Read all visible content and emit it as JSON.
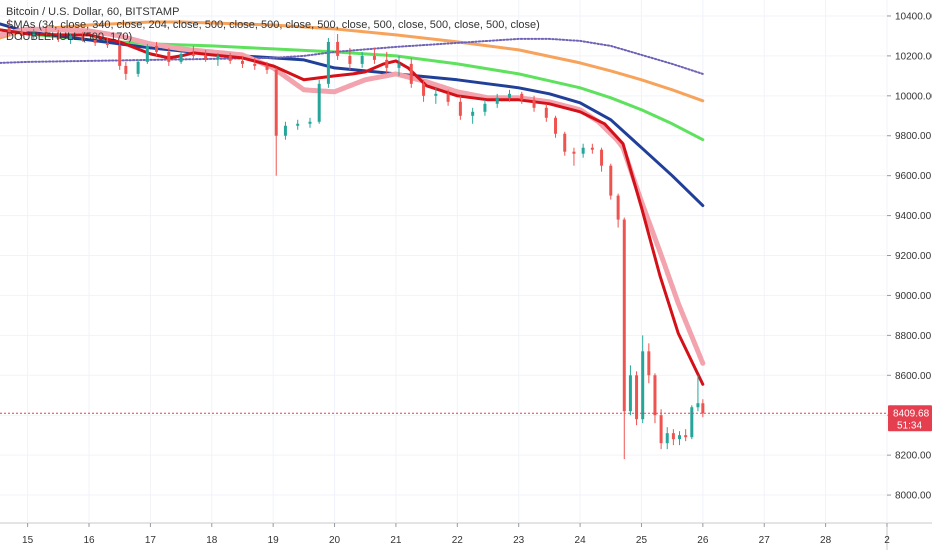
{
  "legend": {
    "symbol": "Bitcoin / U.S. Dollar, 60, BITSTAMP",
    "smas": "SMAs (34, close, 340, close, 204, close, 500, close, 500, close, 500, close, 500, close, 500, close, 500, close)",
    "hull": "DOUBLEHULL (500, 170)"
  },
  "price_label": {
    "value": "8409.68",
    "countdown": "51:34",
    "color": "#e53e4f"
  },
  "chart_data": {
    "type": "line",
    "title": "Bitcoin / U.S. Dollar, 60, BITSTAMP",
    "xlabel": "",
    "ylabel": "",
    "x_ticks": [
      "15",
      "16",
      "17",
      "18",
      "19",
      "20",
      "21",
      "22",
      "23",
      "24",
      "25",
      "26",
      "27",
      "28",
      "2"
    ],
    "x_range": [
      14.55,
      29.0
    ],
    "y_ticks": [
      8000,
      8200,
      8400,
      8600,
      8800,
      9000,
      9200,
      9400,
      9600,
      9800,
      10000,
      10200,
      10400
    ],
    "y_tick_labels": [
      "8000.00",
      "8200.00",
      "8400.00",
      "8600.00",
      "8800.00",
      "9000.00",
      "9200.00",
      "9400.00",
      "9600.00",
      "9800.00",
      "10000.00",
      "10200.00",
      "10400.00"
    ],
    "ylim": [
      7860,
      10480
    ],
    "grid": true,
    "last_price": 8409.68,
    "colors": {
      "candle_up": "#26a69a",
      "candle_down": "#ef5350",
      "sma_orange": "#f7a35c",
      "sma_green": "#5ee25e",
      "sma_blue": "#1f3f99",
      "sma_purple": "#6e63b6",
      "hull_red": "#d41119",
      "hull_pink": "#f2a3ad"
    },
    "series": [
      {
        "color": "#f7a35c",
        "x": [
          14.55,
          15.0,
          16.0,
          17.0,
          17.5,
          18.0,
          19.0,
          20.0,
          21.0,
          22.0,
          23.0,
          24.0,
          24.5,
          25.0,
          25.5,
          26.0
        ],
        "values": [
          10290,
          10330,
          10355,
          10370,
          10370,
          10365,
          10355,
          10335,
          10305,
          10270,
          10230,
          10165,
          10125,
          10080,
          10030,
          9975
        ]
      },
      {
        "color": "#5ee25e",
        "x": [
          14.55,
          15.0,
          16.0,
          17.0,
          18.0,
          19.0,
          20.0,
          21.0,
          22.0,
          23.0,
          23.5,
          24.0,
          24.5,
          25.0,
          25.5,
          26.0
        ],
        "values": [
          10330,
          10310,
          10280,
          10260,
          10250,
          10235,
          10220,
          10200,
          10160,
          10110,
          10075,
          10040,
          9990,
          9930,
          9860,
          9780
        ]
      },
      {
        "color": "#1f3f99",
        "x": [
          14.55,
          15.0,
          16.0,
          17.0,
          18.0,
          19.0,
          19.5,
          20.0,
          21.0,
          22.0,
          22.5,
          23.0,
          23.5,
          24.0,
          24.5,
          25.0,
          25.5,
          26.0
        ],
        "values": [
          10360,
          10320,
          10280,
          10240,
          10210,
          10190,
          10180,
          10140,
          10110,
          10080,
          10060,
          10040,
          10010,
          9965,
          9880,
          9740,
          9600,
          9450
        ]
      },
      {
        "color": "#6e63b6",
        "x": [
          14.55,
          15.0,
          16.0,
          17.0,
          18.0,
          19.0,
          19.5,
          20.0,
          21.0,
          22.0,
          23.0,
          23.5,
          24.0,
          24.5,
          25.0,
          25.5,
          26.0
        ],
        "values": [
          10165,
          10170,
          10175,
          10180,
          10185,
          10190,
          10200,
          10220,
          10245,
          10265,
          10285,
          10285,
          10275,
          10250,
          10205,
          10160,
          10110
        ]
      },
      {
        "color": "#f2a3ad",
        "x": [
          14.55,
          15.0,
          15.5,
          16.0,
          16.5,
          17.0,
          17.5,
          18.0,
          18.5,
          19.0,
          19.5,
          20.0,
          20.5,
          21.0,
          21.5,
          22.0,
          22.5,
          23.0,
          23.5,
          24.0,
          24.3,
          24.6,
          24.7,
          25.0,
          25.3,
          25.6,
          26.0
        ],
        "values": [
          10305,
          10335,
          10330,
          10325,
          10300,
          10260,
          10235,
          10220,
          10205,
          10140,
          10030,
          10020,
          10080,
          10110,
          10070,
          10020,
          9990,
          9990,
          9970,
          9930,
          9870,
          9780,
          9740,
          9470,
          9220,
          8960,
          8660
        ]
      },
      {
        "color": "#d41119",
        "x": [
          14.55,
          15.0,
          15.5,
          16.0,
          16.5,
          17.0,
          17.3,
          17.5,
          17.7,
          18.0,
          18.5,
          19.0,
          19.5,
          20.0,
          20.3,
          20.5,
          20.8,
          21.0,
          21.2,
          21.5,
          22.0,
          22.5,
          23.0,
          23.5,
          24.0,
          24.4,
          24.7,
          25.0,
          25.3,
          25.6,
          26.0
        ],
        "values": [
          10330,
          10310,
          10305,
          10305,
          10270,
          10210,
          10190,
          10200,
          10215,
          10205,
          10190,
          10150,
          10080,
          10100,
          10110,
          10120,
          10160,
          10175,
          10140,
          10050,
          10000,
          9980,
          9980,
          9960,
          9920,
          9860,
          9760,
          9440,
          9100,
          8810,
          8555
        ]
      }
    ],
    "candles": [
      [
        14.7,
        10340,
        10385,
        10300,
        10320
      ],
      [
        14.9,
        10320,
        10345,
        10280,
        10300
      ],
      [
        15.1,
        10300,
        10335,
        10285,
        10320
      ],
      [
        15.3,
        10320,
        10350,
        10300,
        10310
      ],
      [
        15.5,
        10310,
        10330,
        10270,
        10285
      ],
      [
        15.7,
        10285,
        10310,
        10260,
        10300
      ],
      [
        15.9,
        10300,
        10320,
        10270,
        10280
      ],
      [
        16.1,
        10280,
        10300,
        10250,
        10265
      ],
      [
        16.3,
        10265,
        10290,
        10240,
        10255
      ],
      [
        16.5,
        10255,
        10275,
        10130,
        10150
      ],
      [
        16.6,
        10150,
        10170,
        10080,
        10110
      ],
      [
        16.8,
        10110,
        10180,
        10095,
        10170
      ],
      [
        16.95,
        10170,
        10260,
        10160,
        10250
      ],
      [
        17.1,
        10250,
        10270,
        10200,
        10220
      ],
      [
        17.3,
        10220,
        10240,
        10150,
        10170
      ],
      [
        17.5,
        10170,
        10220,
        10160,
        10210
      ],
      [
        17.7,
        10210,
        10250,
        10180,
        10200
      ],
      [
        17.9,
        10200,
        10230,
        10170,
        10185
      ],
      [
        18.1,
        10185,
        10215,
        10150,
        10200
      ],
      [
        18.3,
        10200,
        10215,
        10160,
        10175
      ],
      [
        18.5,
        10175,
        10200,
        10140,
        10160
      ],
      [
        18.7,
        10160,
        10190,
        10130,
        10150
      ],
      [
        18.9,
        10150,
        10170,
        10110,
        10130
      ],
      [
        19.05,
        10130,
        10140,
        9600,
        9800
      ],
      [
        19.2,
        9800,
        9870,
        9780,
        9850
      ],
      [
        19.4,
        9850,
        9880,
        9830,
        9860
      ],
      [
        19.6,
        9860,
        9890,
        9840,
        9870
      ],
      [
        19.75,
        9870,
        10080,
        9860,
        10060
      ],
      [
        19.9,
        10060,
        10290,
        10040,
        10270
      ],
      [
        20.05,
        10270,
        10310,
        10180,
        10200
      ],
      [
        20.25,
        10200,
        10240,
        10130,
        10160
      ],
      [
        20.45,
        10160,
        10220,
        10140,
        10200
      ],
      [
        20.65,
        10200,
        10240,
        10160,
        10180
      ],
      [
        20.85,
        10180,
        10220,
        10110,
        10140
      ],
      [
        21.05,
        10140,
        10200,
        10100,
        10160
      ],
      [
        21.25,
        10160,
        10190,
        10040,
        10060
      ],
      [
        21.45,
        10060,
        10080,
        9970,
        10000
      ],
      [
        21.65,
        10000,
        10040,
        9960,
        10010
      ],
      [
        21.85,
        10010,
        10030,
        9950,
        9970
      ],
      [
        22.05,
        9970,
        10000,
        9880,
        9900
      ],
      [
        22.25,
        9900,
        9940,
        9860,
        9920
      ],
      [
        22.45,
        9920,
        9980,
        9900,
        9960
      ],
      [
        22.65,
        9960,
        10010,
        9940,
        9990
      ],
      [
        22.85,
        9990,
        10030,
        9970,
        10010
      ],
      [
        23.05,
        10010,
        10020,
        9960,
        9980
      ],
      [
        23.25,
        9980,
        10000,
        9920,
        9940
      ],
      [
        23.45,
        9940,
        9960,
        9870,
        9890
      ],
      [
        23.6,
        9890,
        9900,
        9790,
        9810
      ],
      [
        23.75,
        9810,
        9820,
        9700,
        9720
      ],
      [
        23.9,
        9720,
        9740,
        9650,
        9710
      ],
      [
        24.05,
        9710,
        9760,
        9690,
        9740
      ],
      [
        24.2,
        9740,
        9760,
        9710,
        9730
      ],
      [
        24.35,
        9730,
        9740,
        9620,
        9650
      ],
      [
        24.5,
        9650,
        9660,
        9480,
        9500
      ],
      [
        24.62,
        9500,
        9510,
        9340,
        9380
      ],
      [
        24.72,
        9380,
        9390,
        8180,
        8420
      ],
      [
        24.82,
        8420,
        8650,
        8400,
        8600
      ],
      [
        24.92,
        8600,
        8620,
        8350,
        8380
      ],
      [
        25.02,
        8380,
        8800,
        8360,
        8720
      ],
      [
        25.12,
        8720,
        8760,
        8560,
        8600
      ],
      [
        25.22,
        8600,
        8610,
        8360,
        8400
      ],
      [
        25.32,
        8400,
        8430,
        8230,
        8260
      ],
      [
        25.42,
        8260,
        8340,
        8230,
        8310
      ],
      [
        25.52,
        8310,
        8330,
        8250,
        8280
      ],
      [
        25.62,
        8280,
        8320,
        8250,
        8300
      ],
      [
        25.72,
        8300,
        8330,
        8270,
        8290
      ],
      [
        25.82,
        8290,
        8450,
        8280,
        8440
      ],
      [
        25.92,
        8440,
        8600,
        8420,
        8460
      ],
      [
        26.0,
        8460,
        8480,
        8390,
        8409.68
      ]
    ]
  }
}
